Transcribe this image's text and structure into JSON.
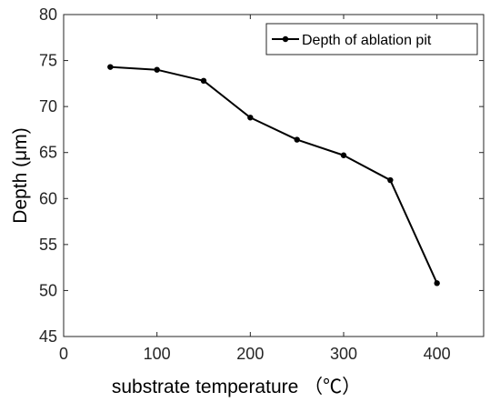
{
  "chart_data": {
    "type": "line",
    "xlabel": "substrate temperature （℃）",
    "ylabel": "Depth (μm)",
    "xlim": [
      0,
      450
    ],
    "ylim": [
      45,
      80
    ],
    "xticks": [
      0,
      100,
      200,
      300,
      400
    ],
    "yticks": [
      45,
      50,
      55,
      60,
      65,
      70,
      75,
      80
    ],
    "grid": false,
    "legend_position": "top-right",
    "series": [
      {
        "name": "Depth of ablation pit",
        "color": "#000000",
        "marker": "circle",
        "x": [
          50,
          100,
          150,
          200,
          250,
          300,
          350,
          400
        ],
        "y": [
          74.3,
          74.0,
          72.8,
          68.8,
          66.4,
          64.7,
          62.0,
          50.8
        ]
      }
    ]
  }
}
